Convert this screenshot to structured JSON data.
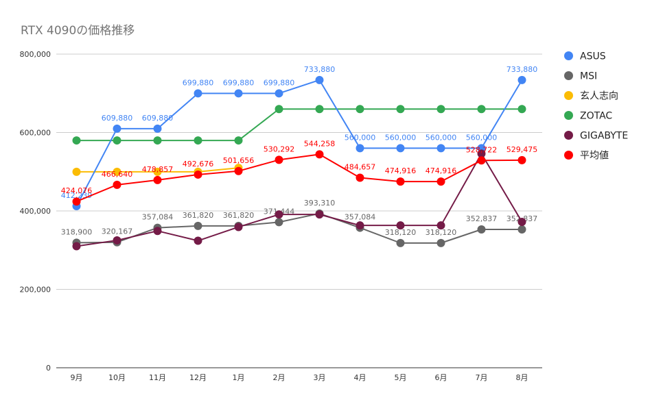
{
  "chart_data": {
    "type": "line",
    "title": "RTX 4090の価格推移",
    "xlabel": "",
    "ylabel": "",
    "categories": [
      "9月",
      "10月",
      "11月",
      "12月",
      "1月",
      "2月",
      "3月",
      "4月",
      "5月",
      "6月",
      "7月",
      "8月"
    ],
    "ylim": [
      0,
      800000
    ],
    "yticks": [
      0,
      200000,
      400000,
      600000,
      800000
    ],
    "ytick_labels": [
      "0",
      "200,000",
      "400,000",
      "600,000",
      "800,000"
    ],
    "grid": true,
    "legend_position": "right",
    "series": [
      {
        "name": "ASUS",
        "color": "#4285f4",
        "values": [
          412239,
          609880,
          609880,
          699880,
          699880,
          699880,
          733880,
          560000,
          560000,
          560000,
          560000,
          733880
        ],
        "data_labels": [
          "412,239",
          "609,880",
          "609,880",
          "699,880",
          "699,880",
          "699,880",
          "733,880",
          "560,000",
          "560,000",
          "560,000",
          "560,000",
          "733,880"
        ]
      },
      {
        "name": "MSI",
        "color": "#666666",
        "values": [
          318900,
          320167,
          357084,
          361820,
          361820,
          371444,
          393310,
          357084,
          318120,
          318120,
          352837,
          352837
        ],
        "data_labels": [
          "318,900",
          "320,167",
          "357,084",
          "361,820",
          "361,820",
          "371,444",
          "393,310",
          "357,084",
          "318,120",
          "318,120",
          "352,837",
          "352,837"
        ]
      },
      {
        "name": "玄人志向",
        "color": "#fbbc04",
        "values": [
          499800,
          499800,
          499800,
          499800,
          509800,
          null,
          null,
          null,
          null,
          null,
          null,
          null
        ],
        "data_labels": []
      },
      {
        "name": "ZOTAC",
        "color": "#34a853",
        "values": [
          579800,
          579800,
          579800,
          579800,
          579800,
          659800,
          659800,
          659800,
          659800,
          659800,
          659800,
          659800
        ],
        "data_labels": []
      },
      {
        "name": "GIGABYTE",
        "color": "#741b47",
        "values": [
          310000,
          325000,
          349000,
          324000,
          359000,
          391000,
          391000,
          363000,
          363000,
          363000,
          546000,
          372000
        ],
        "data_labels": []
      },
      {
        "name": "平均値",
        "color": "#ff0000",
        "values": [
          424076,
          466640,
          478857,
          492676,
          501656,
          530292,
          544258,
          484657,
          474916,
          474916,
          528722,
          529475
        ],
        "data_labels": [
          "424,076",
          "466,640",
          "478,857",
          "492,676",
          "501,656",
          "530,292",
          "544,258",
          "484,657",
          "474,916",
          "474,916",
          "528,722",
          "529,475"
        ]
      }
    ]
  }
}
